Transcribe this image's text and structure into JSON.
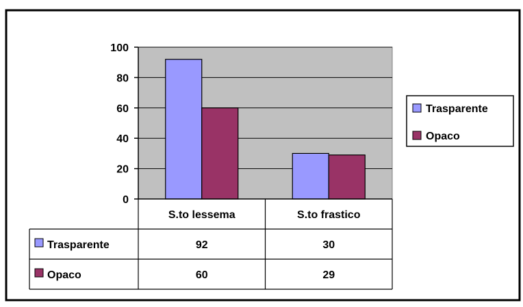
{
  "chart_data": {
    "type": "bar",
    "title": "",
    "xlabel": "",
    "ylabel": "",
    "ylim": [
      0,
      100
    ],
    "yticks": [
      0,
      20,
      40,
      60,
      80,
      100
    ],
    "grid": true,
    "legend_position": "right",
    "plot_background": "#c0c0c0",
    "categories": [
      "S.to lessema",
      "S.to frastico"
    ],
    "series": [
      {
        "name": "Trasparente",
        "values": [
          92,
          30
        ],
        "color": "#9999ff"
      },
      {
        "name": "Opaco",
        "values": [
          60,
          29
        ],
        "color": "#993366"
      }
    ],
    "data_table": true
  }
}
